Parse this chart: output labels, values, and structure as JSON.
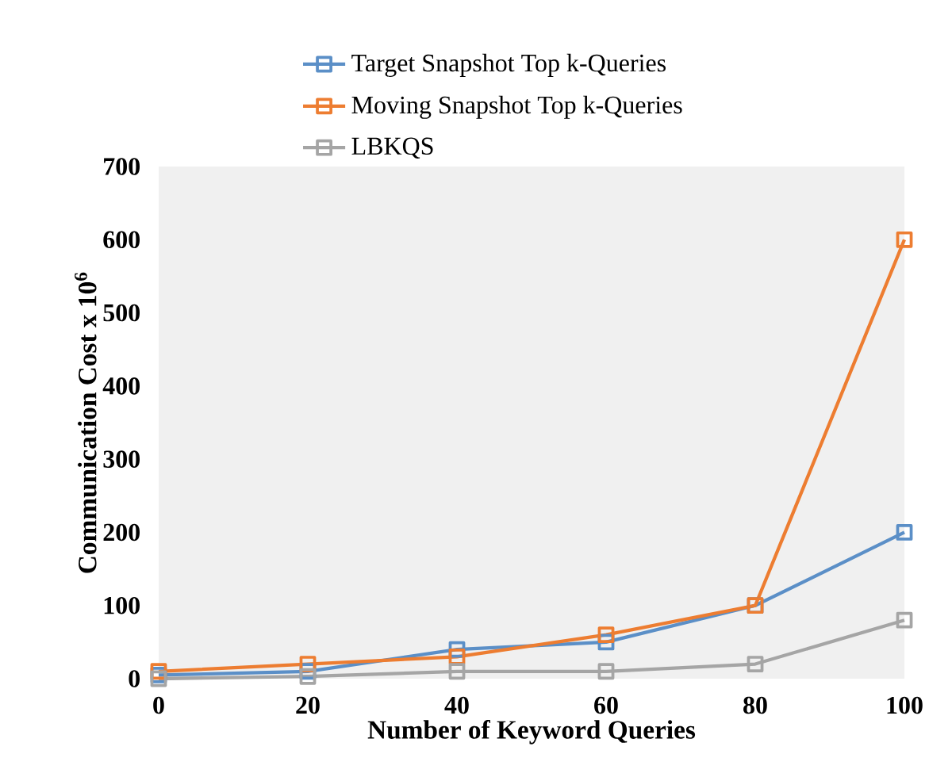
{
  "chart_data": {
    "type": "line",
    "xlabel": "Number of Keyword Queries",
    "ylabel": "Communication Cost x 10$^{6}$",
    "x": [
      0,
      20,
      40,
      60,
      80,
      100
    ],
    "series": [
      {
        "name": "Target Snapshot Top k-Queries",
        "color": "#5b8fc7",
        "values": [
          5,
          10,
          40,
          50,
          100,
          200
        ]
      },
      {
        "name": "Moving Snapshot Top k-Queries",
        "color": "#ed7d31",
        "values": [
          10,
          20,
          30,
          60,
          100,
          600
        ]
      },
      {
        "name": "LBKQS",
        "color": "#a5a5a5",
        "values": [
          0,
          3,
          10,
          10,
          20,
          80
        ]
      }
    ],
    "xlim": [
      0,
      100
    ],
    "xticks": [
      0,
      20,
      40,
      60,
      80,
      100
    ],
    "ylim": [
      0,
      700
    ],
    "yticks": [
      0,
      100,
      200,
      300,
      400,
      500,
      600,
      700
    ],
    "legend": "top",
    "marker": "square",
    "line_style": "solid"
  }
}
